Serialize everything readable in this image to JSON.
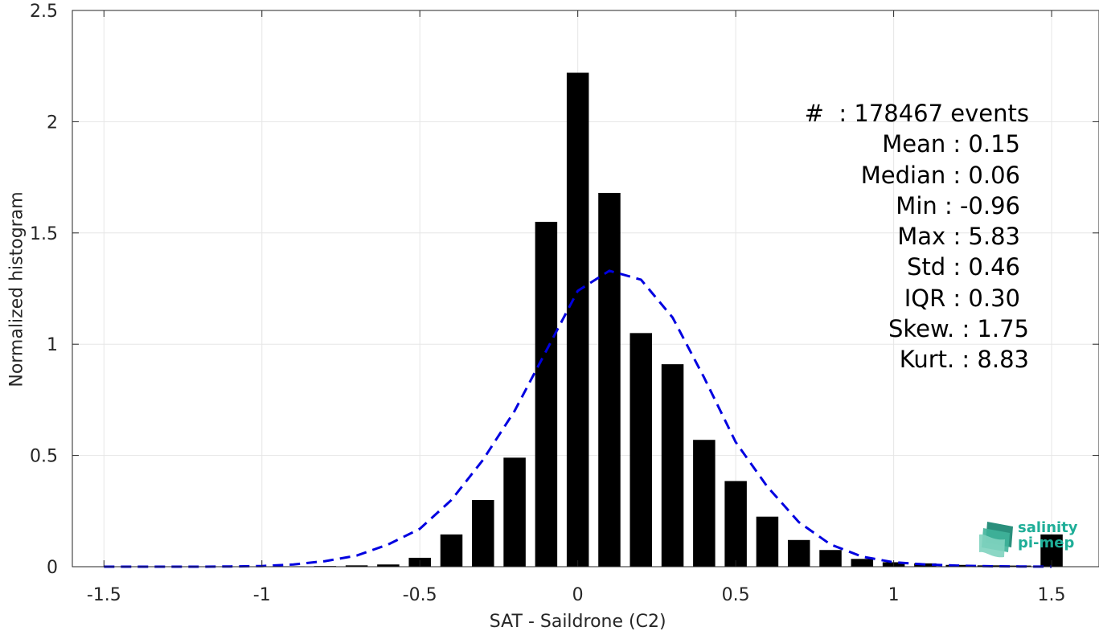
{
  "chart_data": {
    "type": "bar",
    "xlabel": "SAT - Saildrone (C2)",
    "ylabel": "Normalized histogram",
    "xlim": [
      -1.6,
      1.65
    ],
    "ylim": [
      0,
      2.5
    ],
    "grid": true,
    "x_ticks": [
      -1.5,
      -1,
      -0.5,
      0,
      0.5,
      1,
      1.5
    ],
    "x_tick_labels": [
      "-1.5",
      "-1",
      "-0.5",
      "0",
      "0.5",
      "1",
      "1.5"
    ],
    "y_ticks": [
      0,
      0.5,
      1,
      1.5,
      2,
      2.5
    ],
    "y_tick_labels": [
      "0",
      "0.5",
      "1",
      "1.5",
      "2",
      "2.5"
    ],
    "bar_color": "#000000",
    "bar_width": 0.07,
    "bars": {
      "x": [
        -1.5,
        -1.4,
        -1.3,
        -1.2,
        -1.1,
        -1.0,
        -0.9,
        -0.8,
        -0.7,
        -0.6,
        -0.5,
        -0.4,
        -0.3,
        -0.2,
        -0.1,
        0.0,
        0.1,
        0.2,
        0.3,
        0.4,
        0.5,
        0.6,
        0.7,
        0.8,
        0.9,
        1.0,
        1.1,
        1.2,
        1.3,
        1.4,
        1.5
      ],
      "values": [
        0,
        0,
        0,
        0,
        0,
        0.001,
        0.002,
        0.003,
        0.006,
        0.01,
        0.04,
        0.145,
        0.3,
        0.49,
        1.55,
        2.22,
        1.68,
        1.05,
        0.91,
        0.57,
        0.385,
        0.225,
        0.12,
        0.075,
        0.035,
        0.02,
        0.015,
        0.008,
        0.006,
        0.005,
        0.145
      ]
    },
    "fit_line": {
      "style": "dashed",
      "color": "#0000e0",
      "x": [
        -1.5,
        -1.4,
        -1.3,
        -1.2,
        -1.1,
        -1.0,
        -0.9,
        -0.8,
        -0.7,
        -0.6,
        -0.5,
        -0.4,
        -0.3,
        -0.2,
        -0.1,
        0.0,
        0.1,
        0.2,
        0.3,
        0.4,
        0.5,
        0.6,
        0.7,
        0.8,
        0.9,
        1.0,
        1.1,
        1.2,
        1.3,
        1.4,
        1.5
      ],
      "y": [
        0,
        0,
        0,
        0.0,
        0.001,
        0.003,
        0.01,
        0.025,
        0.05,
        0.1,
        0.17,
        0.3,
        0.48,
        0.7,
        0.97,
        1.24,
        1.33,
        1.29,
        1.12,
        0.85,
        0.56,
        0.36,
        0.2,
        0.1,
        0.045,
        0.02,
        0.01,
        0.005,
        0.002,
        0.001,
        0
      ]
    }
  },
  "stats": {
    "count": "#  : 178467 events",
    "mean": "Mean : 0.15",
    "median": "Median : 0.06",
    "min": "Min : -0.96",
    "max": "Max : 5.83",
    "std": "Std : 0.46",
    "iqr": "IQR : 0.30",
    "skew": "Skew. : 1.75",
    "kurt": "Kurt. : 8.83"
  },
  "logo": {
    "line1": "salinity",
    "line2": "pi-mep",
    "color": "#1fae98"
  }
}
